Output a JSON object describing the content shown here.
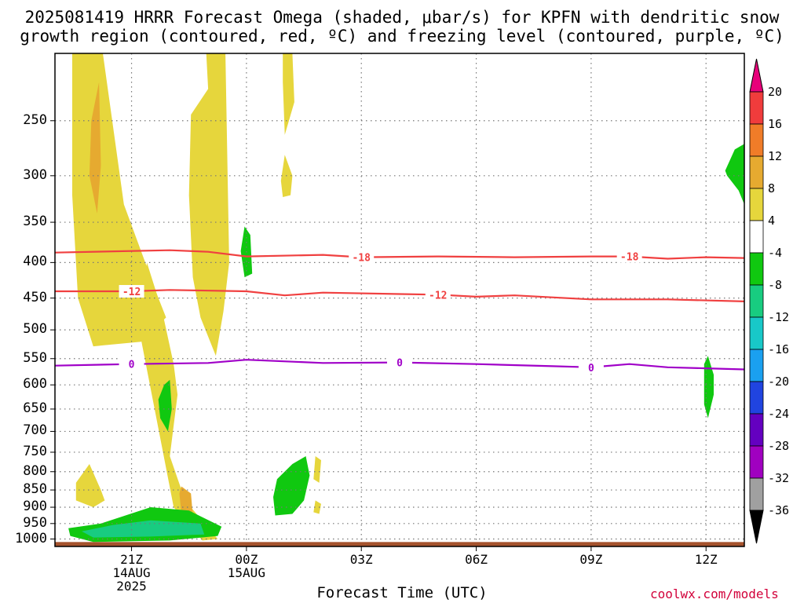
{
  "title": {
    "line1": "2025081419 HRRR Forecast Omega (shaded, μbar/s) for KPFN with dendritic snow",
    "line2": "growth region (contoured, red, ºC) and freezing level (contoured, purple, ºC)"
  },
  "credit": "coolwx.com/models",
  "chart_data": {
    "type": "time-height cross-section",
    "xlabel": "Forecast Time (UTC)",
    "x_ticks": [
      {
        "label": "21Z",
        "sub": [
          "14AUG",
          "2025"
        ],
        "hours": 2
      },
      {
        "label": "00Z",
        "sub": [
          "15AUG"
        ],
        "hours": 5
      },
      {
        "label": "03Z",
        "sub": [],
        "hours": 8
      },
      {
        "label": "06Z",
        "sub": [],
        "hours": 11
      },
      {
        "label": "09Z",
        "sub": [],
        "hours": 14
      },
      {
        "label": "12Z",
        "sub": [],
        "hours": 17
      }
    ],
    "x_range_hours": [
      0.0,
      18.0
    ],
    "y_ticks": [
      250,
      300,
      350,
      400,
      450,
      500,
      550,
      600,
      650,
      700,
      750,
      800,
      850,
      900,
      950,
      1000
    ],
    "y_range_hpa": [
      200,
      1025
    ],
    "y_scale": "pressure (inverted)",
    "colorbar": {
      "labels": [
        "20",
        "16",
        "12",
        "8",
        "4",
        "-4",
        "-8",
        "-12",
        "-16",
        "-20",
        "-24",
        "-28",
        "-32",
        "-36"
      ],
      "colors": [
        "#e8007a",
        "#f03c3c",
        "#f07c28",
        "#e6aa30",
        "#e6d63c",
        "#ffffff",
        "#10c810",
        "#18cc80",
        "#18c8c8",
        "#1aa0f0",
        "#2044e0",
        "#6400c0",
        "#a000c0",
        "#a0a0a0",
        "#000000"
      ]
    },
    "omega_regions": [
      {
        "level": "4",
        "color": "#e6d63c",
        "pts": [
          [
            0.45,
            200
          ],
          [
            1.25,
            200
          ],
          [
            1.8,
            330
          ],
          [
            2.7,
            450
          ],
          [
            2.9,
            480
          ],
          [
            2.25,
            520
          ],
          [
            1.0,
            528
          ],
          [
            0.6,
            450
          ],
          [
            0.45,
            320
          ]
        ]
      },
      {
        "level": "8",
        "color": "#e6aa30",
        "pts": [
          [
            0.95,
            250
          ],
          [
            1.15,
            220
          ],
          [
            1.2,
            290
          ],
          [
            1.1,
            340
          ],
          [
            0.9,
            300
          ]
        ]
      },
      {
        "level": "4",
        "color": "#e6d63c",
        "pts": [
          [
            3.95,
            200
          ],
          [
            4.45,
            200
          ],
          [
            4.55,
            400
          ],
          [
            4.4,
            470
          ],
          [
            4.2,
            545
          ],
          [
            3.8,
            480
          ],
          [
            3.6,
            420
          ],
          [
            3.5,
            320
          ],
          [
            3.55,
            245
          ],
          [
            4.0,
            225
          ]
        ]
      },
      {
        "level": "4",
        "color": "#e6d63c",
        "pts": [
          [
            5.95,
            200
          ],
          [
            6.2,
            200
          ],
          [
            6.25,
            235
          ],
          [
            6.0,
            262
          ],
          [
            5.95,
            220
          ]
        ]
      },
      {
        "level": "4",
        "color": "#e6d63c",
        "pts": [
          [
            6.0,
            280
          ],
          [
            6.2,
            300
          ],
          [
            6.15,
            320
          ],
          [
            5.95,
            322
          ],
          [
            5.9,
            305
          ]
        ]
      },
      {
        "level": "4",
        "color": "#e6d63c",
        "pts": [
          [
            3.85,
            1005
          ],
          [
            3.1,
            900
          ],
          [
            2.2,
            500
          ],
          [
            2.4,
            400
          ],
          [
            2.8,
            470
          ],
          [
            3.1,
            560
          ],
          [
            3.2,
            620
          ],
          [
            3.0,
            760
          ],
          [
            3.4,
            880
          ],
          [
            4.25,
            1000
          ]
        ]
      },
      {
        "level": "8",
        "color": "#e6aa30",
        "pts": [
          [
            3.3,
            840
          ],
          [
            3.55,
            860
          ],
          [
            3.6,
            925
          ],
          [
            3.5,
            950
          ],
          [
            3.3,
            920
          ],
          [
            3.25,
            860
          ]
        ]
      },
      {
        "level": "4",
        "color": "#e6d63c",
        "pts": [
          [
            0.55,
            830
          ],
          [
            0.9,
            780
          ],
          [
            1.2,
            850
          ],
          [
            1.3,
            880
          ],
          [
            1.0,
            900
          ],
          [
            0.55,
            880
          ]
        ]
      },
      {
        "level": "4",
        "color": "#e6d63c",
        "pts": [
          [
            6.8,
            760
          ],
          [
            6.95,
            770
          ],
          [
            6.9,
            830
          ],
          [
            6.75,
            820
          ]
        ]
      },
      {
        "level": "4",
        "color": "#e6d63c",
        "pts": [
          [
            6.8,
            880
          ],
          [
            6.95,
            890
          ],
          [
            6.9,
            920
          ],
          [
            6.75,
            915
          ]
        ]
      },
      {
        "level": "-4",
        "color": "#10c810",
        "pts": [
          [
            4.95,
            355
          ],
          [
            5.1,
            365
          ],
          [
            5.15,
            415
          ],
          [
            4.95,
            420
          ],
          [
            4.85,
            385
          ]
        ]
      },
      {
        "level": "-4",
        "color": "#10c810",
        "pts": [
          [
            2.85,
            600
          ],
          [
            3.0,
            590
          ],
          [
            3.05,
            650
          ],
          [
            2.95,
            700
          ],
          [
            2.75,
            670
          ],
          [
            2.7,
            630
          ]
        ]
      },
      {
        "level": "-4",
        "color": "#10c810",
        "pts": [
          [
            5.8,
            820
          ],
          [
            6.2,
            780
          ],
          [
            6.55,
            760
          ],
          [
            6.65,
            810
          ],
          [
            6.5,
            880
          ],
          [
            6.2,
            920
          ],
          [
            5.75,
            925
          ],
          [
            5.7,
            870
          ]
        ]
      },
      {
        "level": "-4",
        "color": "#10c810",
        "pts": [
          [
            17.5,
            295
          ],
          [
            17.75,
            275
          ],
          [
            18.0,
            270
          ],
          [
            18.0,
            330
          ],
          [
            17.85,
            315
          ],
          [
            17.55,
            300
          ]
        ]
      },
      {
        "level": "-4",
        "color": "#10c810",
        "pts": [
          [
            16.95,
            560
          ],
          [
            17.05,
            545
          ],
          [
            17.2,
            580
          ],
          [
            17.2,
            620
          ],
          [
            17.05,
            670
          ],
          [
            16.95,
            640
          ]
        ]
      },
      {
        "level": "-4",
        "color": "#10c810",
        "pts": [
          [
            0.35,
            965
          ],
          [
            1.2,
            950
          ],
          [
            2.5,
            900
          ],
          [
            3.5,
            910
          ],
          [
            4.35,
            960
          ],
          [
            4.25,
            990
          ],
          [
            3.0,
            1005
          ],
          [
            1.0,
            1010
          ],
          [
            0.4,
            990
          ]
        ]
      },
      {
        "level": "-8",
        "color": "#18cc80",
        "pts": [
          [
            0.7,
            975
          ],
          [
            1.5,
            955
          ],
          [
            2.5,
            940
          ],
          [
            3.8,
            950
          ],
          [
            3.9,
            985
          ],
          [
            2.5,
            992
          ],
          [
            1.0,
            995
          ]
        ]
      }
    ],
    "contours": [
      {
        "name": "-18",
        "color": "#f04040",
        "label_at_hours": [
          8.0,
          15.0
        ],
        "pts": [
          [
            0,
            387
          ],
          [
            3,
            384
          ],
          [
            4,
            386
          ],
          [
            5,
            392
          ],
          [
            7,
            390
          ],
          [
            8,
            393
          ],
          [
            10,
            392
          ],
          [
            12,
            393
          ],
          [
            14,
            392
          ],
          [
            15,
            392
          ],
          [
            16,
            395
          ],
          [
            17,
            393
          ],
          [
            18,
            394
          ]
        ]
      },
      {
        "name": "-12",
        "color": "#f04040",
        "label_at_hours": [
          2.0,
          10.0
        ],
        "pts": [
          [
            0,
            440
          ],
          [
            2,
            440
          ],
          [
            3,
            438
          ],
          [
            5,
            440
          ],
          [
            6,
            446
          ],
          [
            7,
            442
          ],
          [
            9,
            444
          ],
          [
            10,
            445
          ],
          [
            11,
            448
          ],
          [
            12,
            446
          ],
          [
            14,
            452
          ],
          [
            16,
            452
          ],
          [
            18,
            455
          ]
        ]
      },
      {
        "name": "0",
        "color": "#a000c8",
        "label_at_hours": [
          2.0,
          9.0,
          14.0
        ],
        "pts": [
          [
            0,
            563
          ],
          [
            2,
            560
          ],
          [
            4,
            558
          ],
          [
            5,
            552
          ],
          [
            7,
            558
          ],
          [
            9,
            557
          ],
          [
            11,
            560
          ],
          [
            13,
            564
          ],
          [
            14,
            566
          ],
          [
            15,
            560
          ],
          [
            16,
            566
          ],
          [
            17,
            568
          ],
          [
            18,
            570
          ]
        ]
      }
    ],
    "ground_hpa": 1010
  }
}
